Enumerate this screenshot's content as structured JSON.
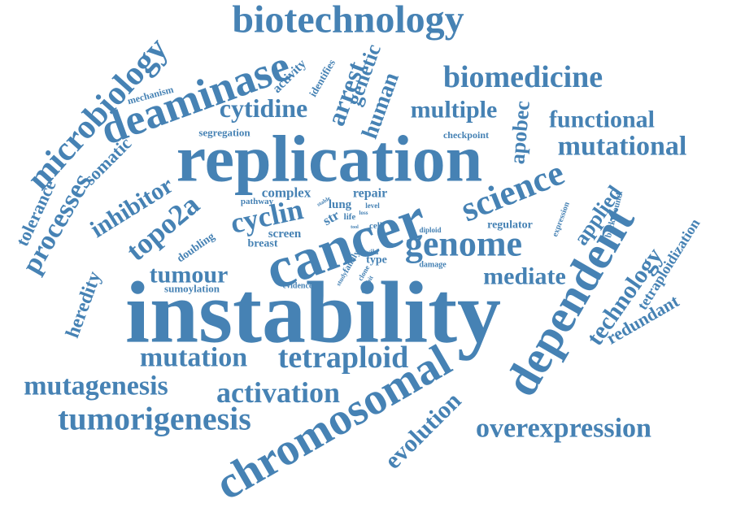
{
  "color": "#4682b4",
  "words": [
    {
      "id": "instability",
      "text": "instability"
    },
    {
      "id": "replication",
      "text": "replication"
    },
    {
      "id": "cancer",
      "text": "cancer"
    },
    {
      "id": "chromosomal",
      "text": "chromosomal"
    },
    {
      "id": "dependent",
      "text": "dependent"
    },
    {
      "id": "deaminase",
      "text": "deaminase"
    },
    {
      "id": "biotechnology",
      "text": "biotechnology"
    },
    {
      "id": "genome",
      "text": "genome"
    },
    {
      "id": "science",
      "text": "science"
    },
    {
      "id": "microbiology",
      "text": "microbiology"
    },
    {
      "id": "tumorigenesis",
      "text": "tumorigenesis"
    },
    {
      "id": "biomedicine",
      "text": "biomedicine"
    },
    {
      "id": "tetraploid",
      "text": "tetraploid"
    },
    {
      "id": "activation",
      "text": "activation"
    },
    {
      "id": "mutagenesis",
      "text": "mutagenesis"
    },
    {
      "id": "mutation",
      "text": "mutation"
    },
    {
      "id": "overexpression",
      "text": "overexpression"
    },
    {
      "id": "evolution",
      "text": "evolution"
    },
    {
      "id": "mutational",
      "text": "mutational"
    },
    {
      "id": "technology",
      "text": "technology"
    },
    {
      "id": "cytidine",
      "text": "cytidine"
    },
    {
      "id": "multiple",
      "text": "multiple"
    },
    {
      "id": "functional",
      "text": "functional"
    },
    {
      "id": "cyclin",
      "text": "cyclin"
    },
    {
      "id": "topo2a",
      "text": "topo2a"
    },
    {
      "id": "inhibitor",
      "text": "inhibitor"
    },
    {
      "id": "processes",
      "text": "processes"
    },
    {
      "id": "tumour",
      "text": "tumour"
    },
    {
      "id": "mediate",
      "text": "mediate"
    },
    {
      "id": "arrest",
      "text": "arrest"
    },
    {
      "id": "human",
      "text": "human"
    },
    {
      "id": "genetic",
      "text": "genetic"
    },
    {
      "id": "apobec",
      "text": "apobec"
    },
    {
      "id": "applied",
      "text": "applied"
    },
    {
      "id": "heredity",
      "text": "heredity"
    },
    {
      "id": "tolerance",
      "text": "tolerance"
    },
    {
      "id": "somatic",
      "text": "somatic"
    },
    {
      "id": "redundant",
      "text": "redundant"
    },
    {
      "id": "tetraploidization",
      "text": "tetraploidization"
    },
    {
      "id": "activity",
      "text": "activity"
    },
    {
      "id": "identifies",
      "text": "identifies"
    },
    {
      "id": "mechanism",
      "text": "mechanism"
    },
    {
      "id": "segregation",
      "text": "segregation"
    },
    {
      "id": "checkpoint",
      "text": "checkpoint"
    },
    {
      "id": "complex",
      "text": "complex"
    },
    {
      "id": "repair",
      "text": "repair"
    },
    {
      "id": "lung",
      "text": "lung"
    },
    {
      "id": "pathway",
      "text": "pathway"
    },
    {
      "id": "str",
      "text": "str"
    },
    {
      "id": "life",
      "text": "life"
    },
    {
      "id": "level",
      "text": "level"
    },
    {
      "id": "cell",
      "text": "cell"
    },
    {
      "id": "screen",
      "text": "screen"
    },
    {
      "id": "breast",
      "text": "breast"
    },
    {
      "id": "doubling",
      "text": "doubling"
    },
    {
      "id": "sumoylation",
      "text": "sumoylation"
    },
    {
      "id": "evidence",
      "text": "evidence"
    },
    {
      "id": "family",
      "text": "family"
    },
    {
      "id": "wild",
      "text": "wild"
    },
    {
      "id": "type",
      "text": "type"
    },
    {
      "id": "damage",
      "text": "damage"
    },
    {
      "id": "diploid",
      "text": "diploid"
    },
    {
      "id": "regulator",
      "text": "regulator"
    },
    {
      "id": "expression",
      "text": "expression"
    },
    {
      "id": "background",
      "text": "background"
    },
    {
      "id": "clone",
      "text": "clone"
    },
    {
      "id": "exhibit",
      "text": "exhibit"
    },
    {
      "id": "study",
      "text": "study"
    },
    {
      "id": "loss",
      "text": "loss"
    },
    {
      "id": "stable",
      "text": "stable"
    },
    {
      "id": "tool",
      "text": "tool"
    }
  ]
}
